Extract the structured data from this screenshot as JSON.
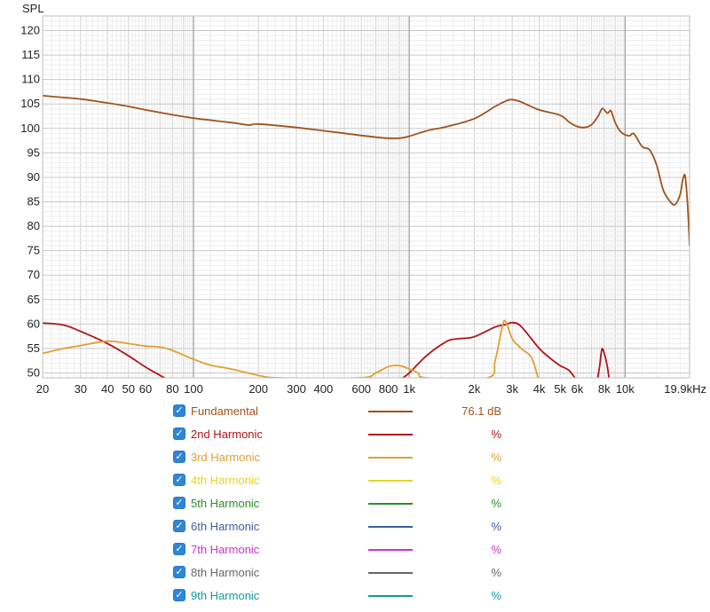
{
  "chart_data": {
    "type": "line",
    "ylabel": "SPL",
    "x_scale": "log",
    "xlim": [
      20,
      19900
    ],
    "ylim": [
      49,
      123
    ],
    "y_ticks": [
      120,
      115,
      110,
      105,
      100,
      95,
      90,
      85,
      80,
      75,
      70,
      65,
      60,
      55,
      50
    ],
    "x_ticks": [
      {
        "v": 20,
        "label": "20"
      },
      {
        "v": 30,
        "label": "30"
      },
      {
        "v": 40,
        "label": "40"
      },
      {
        "v": 50,
        "label": "50"
      },
      {
        "v": 60,
        "label": "60"
      },
      {
        "v": 80,
        "label": "80"
      },
      {
        "v": 100,
        "label": "100"
      },
      {
        "v": 200,
        "label": "200"
      },
      {
        "v": 300,
        "label": "300"
      },
      {
        "v": 400,
        "label": "400"
      },
      {
        "v": 600,
        "label": "600"
      },
      {
        "v": 800,
        "label": "800"
      },
      {
        "v": 1000,
        "label": "1k"
      },
      {
        "v": 2000,
        "label": "2k"
      },
      {
        "v": 3000,
        "label": "3k"
      },
      {
        "v": 4000,
        "label": "4k"
      },
      {
        "v": 5000,
        "label": "5k"
      },
      {
        "v": 6000,
        "label": "6k"
      },
      {
        "v": 8000,
        "label": "8k"
      },
      {
        "v": 10000,
        "label": "10k"
      },
      {
        "v": 19900,
        "label": "19.9kHz"
      }
    ],
    "grid": true,
    "series": [
      {
        "name": "Fundamental",
        "color": "#a0521c",
        "x": [
          20,
          30,
          40,
          50,
          60,
          80,
          100,
          150,
          180,
          200,
          300,
          500,
          700,
          800,
          900,
          1000,
          1200,
          1500,
          2000,
          2500,
          2800,
          3000,
          3300,
          4000,
          5000,
          5500,
          6000,
          6500,
          7000,
          7500,
          7800,
          8000,
          8300,
          8600,
          9000,
          9500,
          10000,
          10500,
          11000,
          12000,
          13000,
          14000,
          15000,
          16000,
          17000,
          18000,
          18500,
          19000,
          19500,
          19900
        ],
        "y": [
          106.7,
          106,
          105.2,
          104.5,
          103.8,
          102.8,
          102.1,
          101.2,
          100.7,
          100.9,
          100.2,
          99,
          98.2,
          98,
          98,
          98.4,
          99.5,
          100.4,
          102,
          104.5,
          105.6,
          105.9,
          105.4,
          103.8,
          102.7,
          101.3,
          100.4,
          100.2,
          100.8,
          102.5,
          104,
          103.8,
          103.1,
          103.6,
          101.2,
          99.4,
          98.7,
          98.5,
          98.9,
          96.3,
          95.6,
          92.5,
          87.5,
          85.3,
          84.4,
          86.5,
          89.5,
          90.2,
          84,
          76
        ]
      },
      {
        "name": "2nd Harmonic",
        "color": "#b0141a",
        "x": [
          20,
          25,
          30,
          40,
          50,
          60,
          70,
          77,
          900,
          1000,
          1200,
          1500,
          1700,
          2000,
          2500,
          2800,
          3000,
          3300,
          4000,
          4500,
          5000,
          5500,
          6000,
          6500,
          7300,
          7600,
          7800,
          8000,
          8300,
          8500
        ],
        "y": [
          60.2,
          59.8,
          58.5,
          56,
          53.5,
          51.2,
          49.5,
          48.5,
          48.5,
          50,
          53.5,
          56.5,
          57,
          57.4,
          59.4,
          59.9,
          60.3,
          59.5,
          55,
          53,
          51.5,
          50.5,
          48.5,
          48,
          48,
          51,
          54.8,
          54,
          51,
          47.5
        ]
      },
      {
        "name": "3rd Harmonic",
        "color": "#e0a030",
        "x": [
          20,
          25,
          30,
          40,
          50,
          60,
          70,
          80,
          100,
          120,
          150,
          200,
          250,
          590,
          700,
          800,
          900,
          1000,
          1100,
          1200,
          2300,
          2500,
          2700,
          2800,
          3000,
          3300,
          3700,
          4000
        ],
        "y": [
          54,
          55,
          55.6,
          56.5,
          56,
          55.5,
          55.3,
          54.6,
          52.8,
          51.6,
          50.8,
          49.5,
          49,
          49,
          50,
          51.3,
          51.5,
          50.8,
          50,
          49,
          49,
          52.5,
          59.5,
          60.5,
          57,
          55,
          53,
          48
        ]
      },
      {
        "name": "4th Harmonic",
        "color": "#ead02a",
        "x": [],
        "y": []
      },
      {
        "name": "5th Harmonic",
        "color": "#2a8c2a",
        "x": [],
        "y": []
      },
      {
        "name": "6th Harmonic",
        "color": "#3a5fa0",
        "x": [],
        "y": []
      },
      {
        "name": "7th Harmonic",
        "color": "#cc33cc",
        "x": [],
        "y": []
      },
      {
        "name": "8th Harmonic",
        "color": "#666666",
        "x": [],
        "y": []
      },
      {
        "name": "9th Harmonic",
        "color": "#139a9a",
        "x": [],
        "y": []
      }
    ]
  },
  "legend": [
    {
      "label": "Fundamental",
      "value": "76.1 dB",
      "color": "#a0521c",
      "checked": true
    },
    {
      "label": "2nd Harmonic",
      "value": "%",
      "color": "#b0141a",
      "checked": true
    },
    {
      "label": "3rd Harmonic",
      "value": "%",
      "color": "#e0a030",
      "checked": true
    },
    {
      "label": "4th Harmonic",
      "value": "%",
      "color": "#ead02a",
      "checked": true
    },
    {
      "label": "5th Harmonic",
      "value": "%",
      "color": "#2a8c2a",
      "checked": true
    },
    {
      "label": "6th Harmonic",
      "value": "%",
      "color": "#3a5fa0",
      "checked": true
    },
    {
      "label": "7th Harmonic",
      "value": "%",
      "color": "#cc33cc",
      "checked": true
    },
    {
      "label": "8th Harmonic",
      "value": "%",
      "color": "#666666",
      "checked": true
    },
    {
      "label": "9th Harmonic",
      "value": "%",
      "color": "#139a9a",
      "checked": true
    }
  ]
}
